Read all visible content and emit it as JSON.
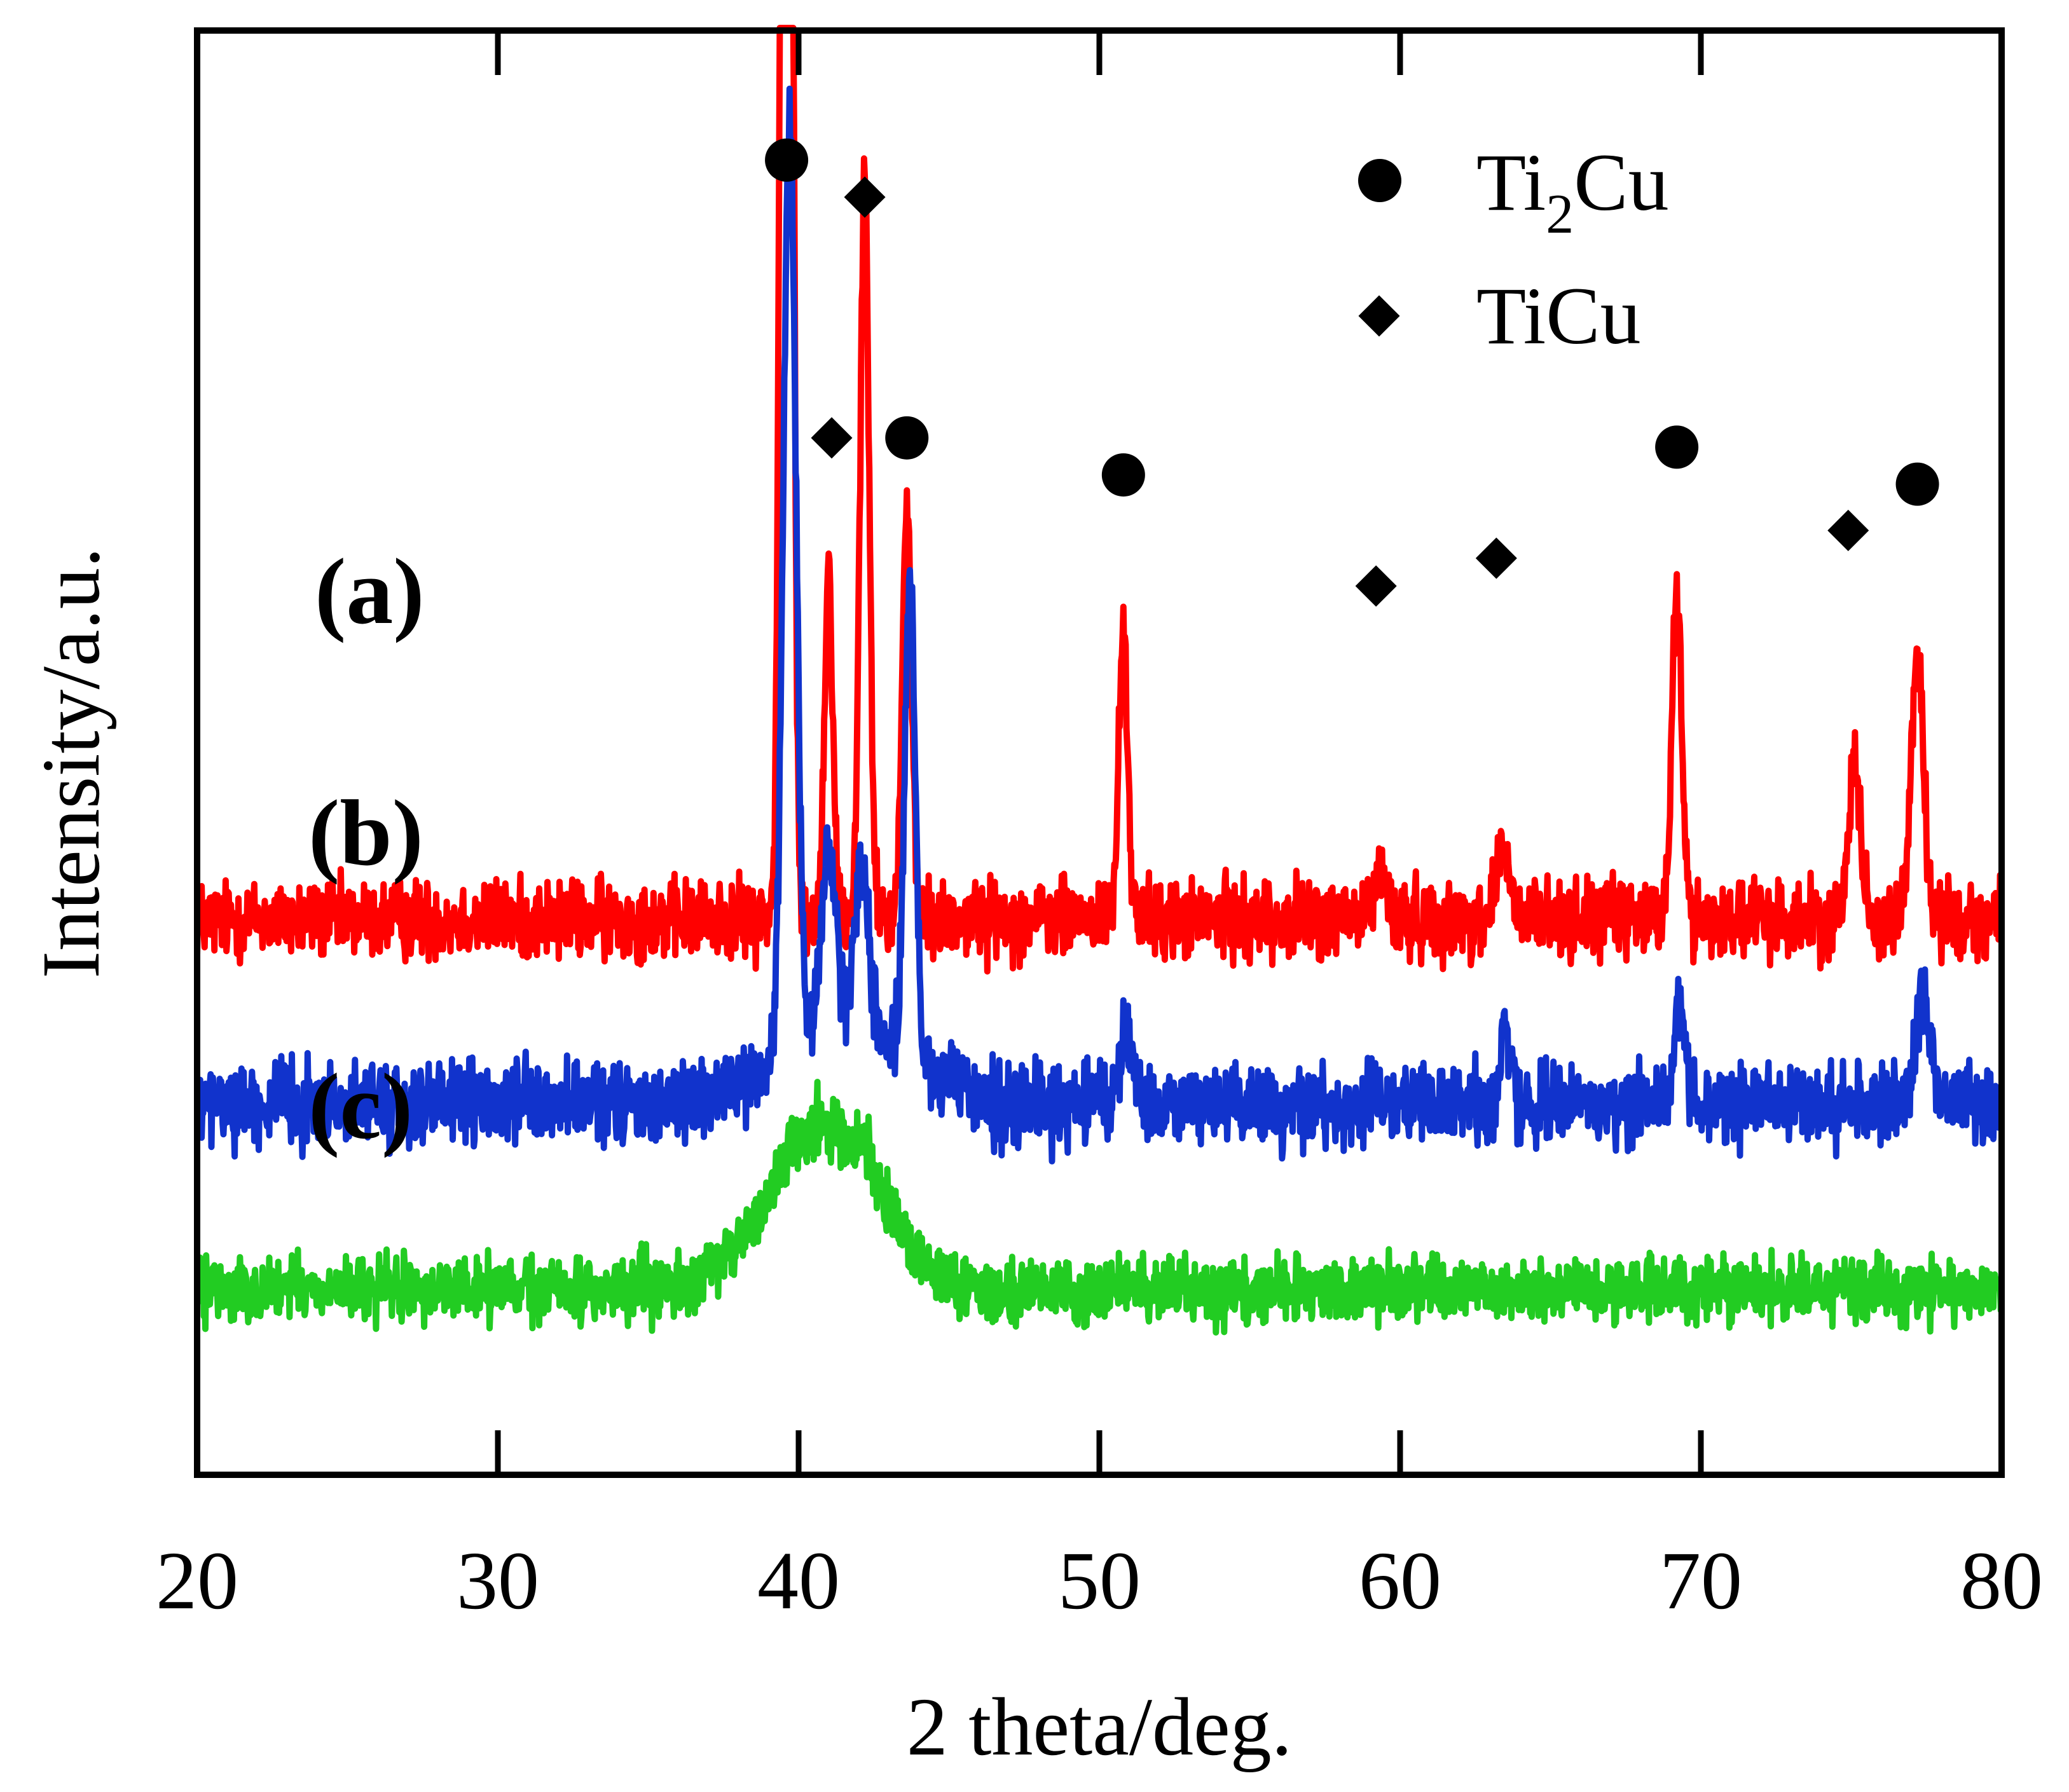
{
  "chart_data": {
    "type": "line",
    "xlabel": "2 theta/deg.",
    "ylabel": "Intensity/a.u.",
    "xlim": [
      20,
      80
    ],
    "x_ticks": [
      20,
      30,
      40,
      50,
      60,
      70,
      80
    ],
    "x_tick_labels": [
      "20",
      "30",
      "40",
      "50",
      "60",
      "70",
      "80"
    ],
    "y_ticks_shown": false,
    "series": [
      {
        "name": "(a)",
        "color": "#ff0000",
        "baseline": 23,
        "noise": 1.5,
        "peaks": [
          {
            "x": 39.6,
            "height": 150,
            "width": 0.22
          },
          {
            "x": 41.0,
            "height": 19,
            "width": 0.2
          },
          {
            "x": 42.2,
            "height": 40,
            "width": 0.22
          },
          {
            "x": 43.6,
            "height": 22,
            "width": 0.22
          },
          {
            "x": 50.8,
            "height": 15,
            "width": 0.22
          },
          {
            "x": 59.3,
            "height": 2.5,
            "width": 0.3
          },
          {
            "x": 63.4,
            "height": 4,
            "width": 0.3
          },
          {
            "x": 69.2,
            "height": 17,
            "width": 0.25
          },
          {
            "x": 75.1,
            "height": 9,
            "width": 0.28
          },
          {
            "x": 77.2,
            "height": 14,
            "width": 0.3
          }
        ]
      },
      {
        "name": "(b)",
        "color": "#1133cc",
        "baseline": 13,
        "noise": 1.5,
        "broad_hump": {
          "x": 41.5,
          "height": 4,
          "width": 3.0
        },
        "peaks": [
          {
            "x": 39.7,
            "height": 50,
            "width": 0.3
          },
          {
            "x": 41.0,
            "height": 10,
            "width": 0.35
          },
          {
            "x": 42.1,
            "height": 9,
            "width": 0.35
          },
          {
            "x": 43.7,
            "height": 26,
            "width": 0.25
          },
          {
            "x": 50.9,
            "height": 4,
            "width": 0.3
          },
          {
            "x": 63.5,
            "height": 4,
            "width": 0.25
          },
          {
            "x": 69.3,
            "height": 5,
            "width": 0.3
          },
          {
            "x": 77.4,
            "height": 6,
            "width": 0.35
          }
        ]
      },
      {
        "name": "(c)",
        "color": "#22cc22",
        "baseline": 3,
        "noise": 1.2,
        "broad_hump": {
          "x": 40.8,
          "height": 9,
          "width": 2.5
        },
        "peaks": [
          {
            "x": 42.2,
            "height": 2,
            "width": 0.2
          }
        ]
      }
    ],
    "series_labels": [
      "(a)",
      "(b)",
      "(c)"
    ],
    "legend": {
      "position": "top-right",
      "entries": [
        {
          "marker": "circle",
          "label_main": "Ti",
          "label_sub": "2",
          "label_rest": "Cu"
        },
        {
          "marker": "diamond",
          "label": "TiCu"
        }
      ]
    },
    "peak_markers": [
      {
        "marker": "circle",
        "x": 39.6,
        "y": 64
      },
      {
        "marker": "diamond",
        "x": 42.2,
        "y": 62
      },
      {
        "marker": "diamond",
        "x": 41.1,
        "y": 49
      },
      {
        "marker": "circle",
        "x": 43.6,
        "y": 49
      },
      {
        "marker": "circle",
        "x": 50.8,
        "y": 47
      },
      {
        "marker": "diamond",
        "x": 59.2,
        "y": 41
      },
      {
        "marker": "diamond",
        "x": 63.2,
        "y": 42.5
      },
      {
        "marker": "circle",
        "x": 69.2,
        "y": 48.5
      },
      {
        "marker": "diamond",
        "x": 74.9,
        "y": 44
      },
      {
        "marker": "circle",
        "x": 77.2,
        "y": 46.5
      }
    ],
    "ylim_data": [
      -7,
      71
    ]
  }
}
